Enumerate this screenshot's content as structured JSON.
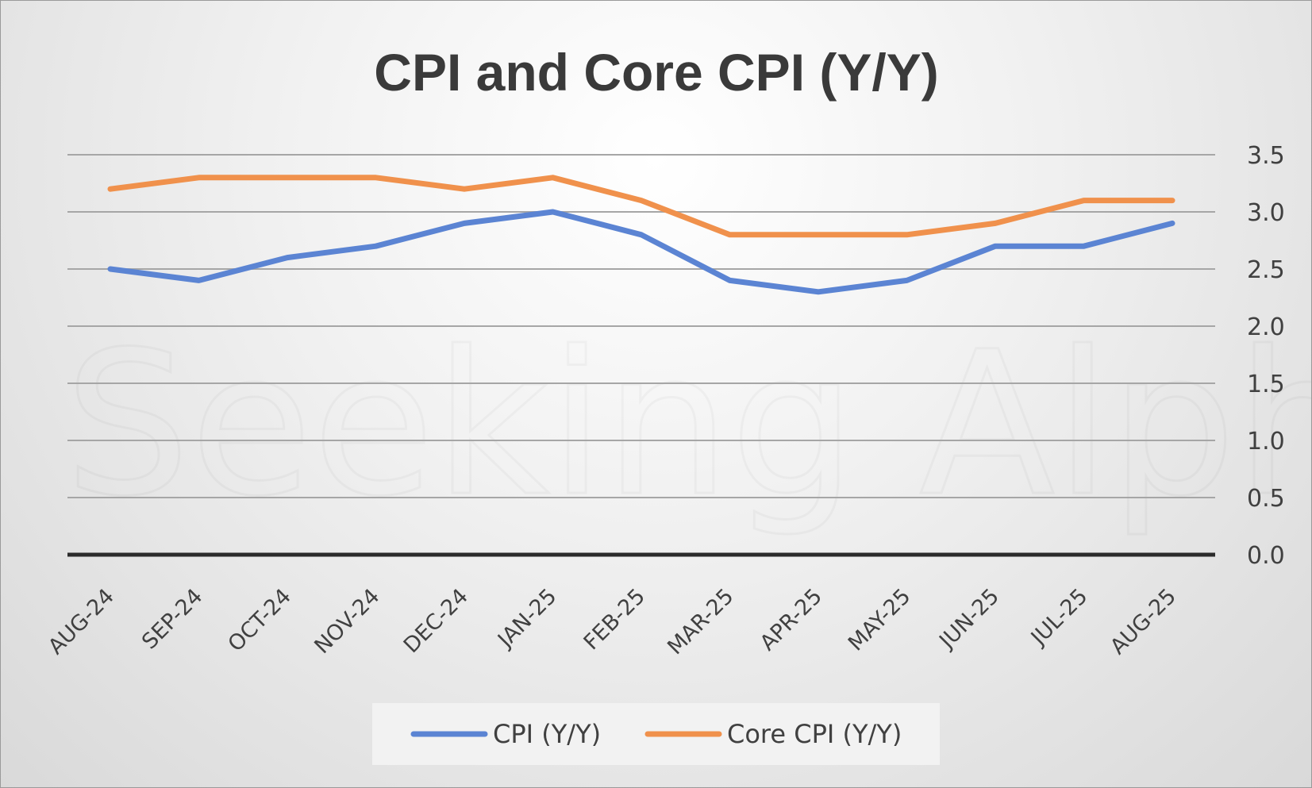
{
  "watermark": "Seeking Alpha",
  "chart_data": {
    "type": "line",
    "title": "CPI and Core CPI (Y/Y)",
    "xlabel": "",
    "ylabel": "",
    "categories": [
      "AUG-24",
      "SEP-24",
      "OCT-24",
      "NOV-24",
      "DEC-24",
      "JAN-25",
      "FEB-25",
      "MAR-25",
      "APR-25",
      "MAY-25",
      "JUN-25",
      "JUL-25",
      "AUG-25"
    ],
    "ylim": [
      0,
      3.5
    ],
    "yticks": [
      "0.0",
      "0.5",
      "1.0",
      "1.5",
      "2.0",
      "2.5",
      "3.0",
      "3.5"
    ],
    "grid": true,
    "y_axis_side": "right",
    "legend_position": "bottom",
    "series": [
      {
        "name": "CPI (Y/Y)",
        "color": "#5b84d3",
        "values": [
          2.5,
          2.4,
          2.6,
          2.7,
          2.9,
          3.0,
          2.8,
          2.4,
          2.3,
          2.4,
          2.7,
          2.7,
          2.9
        ]
      },
      {
        "name": "Core CPI (Y/Y)",
        "color": "#f0914c",
        "values": [
          3.2,
          3.3,
          3.3,
          3.3,
          3.2,
          3.3,
          3.1,
          2.8,
          2.8,
          2.8,
          2.9,
          3.1,
          3.1
        ]
      }
    ]
  }
}
